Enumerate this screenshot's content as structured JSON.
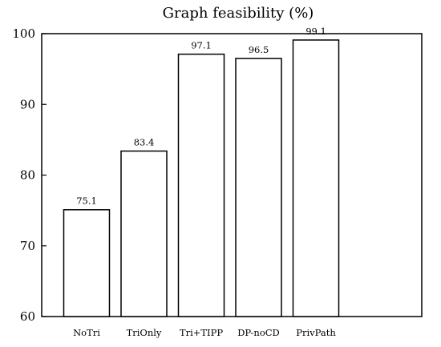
{
  "chart_data": {
    "type": "bar",
    "title": "Graph feasibility (%)",
    "xlabel": "",
    "ylabel": "",
    "categories": [
      "NoTri",
      "TriOnly",
      "Tri+TIPP",
      "DP-noCD",
      "PrivPath"
    ],
    "values": [
      75.1,
      83.4,
      97.1,
      96.5,
      99.1
    ],
    "data_labels": [
      "75.1",
      "83.4",
      "97.1",
      "96.5",
      "99.1"
    ],
    "ylim": [
      60,
      100
    ],
    "yticks": [
      60,
      70,
      80,
      90,
      100
    ],
    "grid": false,
    "legend": "none",
    "colors": {
      "bar_fill": "#ffffff",
      "bar_stroke": "#000000",
      "axis": "#000000"
    }
  }
}
